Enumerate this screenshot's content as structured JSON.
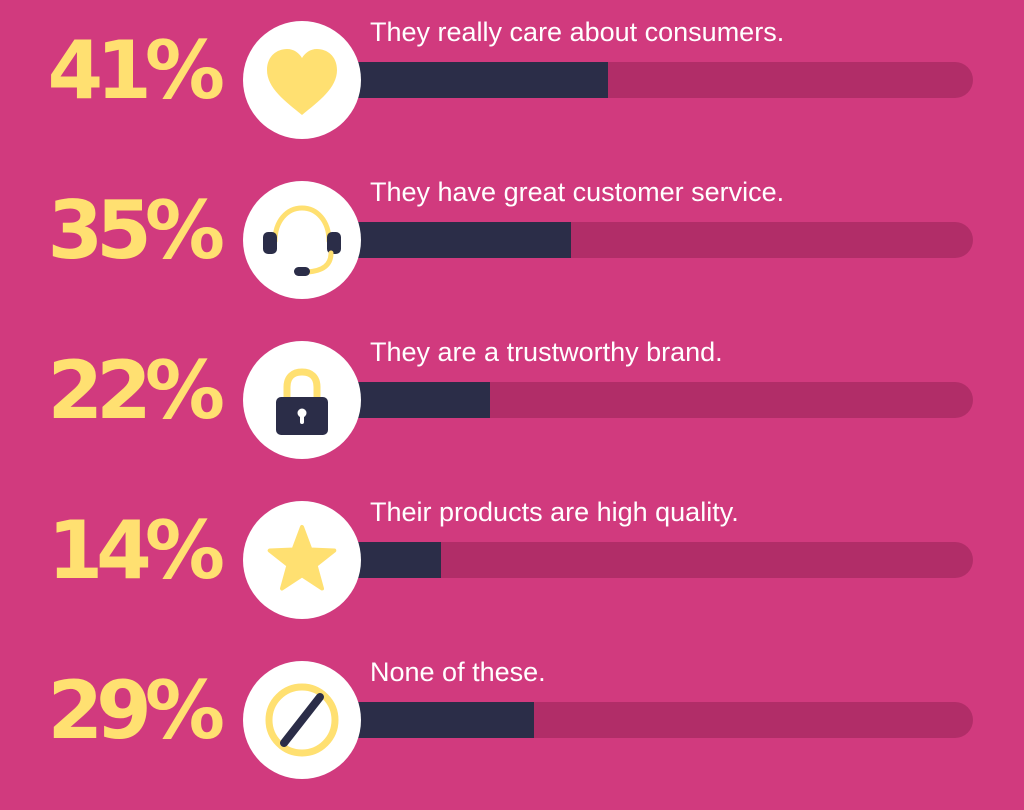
{
  "chart_data": {
    "type": "bar",
    "orientation": "horizontal",
    "categories": [
      "They really care about consumers.",
      "They have great customer service.",
      "They are a trustworthy brand.",
      "Their products are high quality.",
      "None of these."
    ],
    "values": [
      41,
      35,
      22,
      14,
      29
    ],
    "value_labels": [
      "41%",
      "35%",
      "22%",
      "14%",
      "29%"
    ],
    "icons": [
      "heart-icon",
      "headset-icon",
      "lock-icon",
      "star-icon",
      "none-icon"
    ],
    "xlim": [
      0,
      100
    ],
    "unit": "%"
  },
  "colors": {
    "background": "#D13A7E",
    "track": "#B12D68",
    "fill": "#2B2D48",
    "percent_text": "#FFE071",
    "icon_yellow": "#FFE071",
    "icon_circle": "#FFFFFF"
  }
}
